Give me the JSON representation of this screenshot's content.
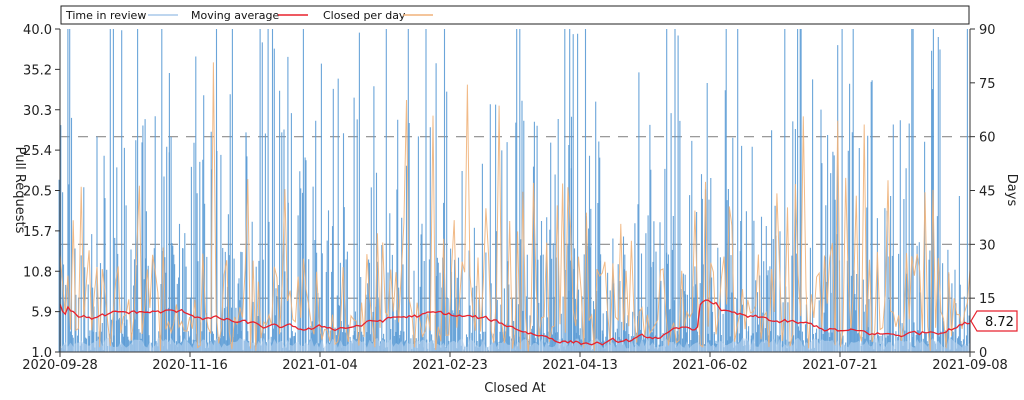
{
  "chart_data": {
    "type": "line",
    "xlabel": "Closed At",
    "ylabel_left": "Pull Requests",
    "ylabel_right": "Days",
    "x_tick_labels": [
      "2020-09-28",
      "2020-11-16",
      "2021-01-04",
      "2021-02-23",
      "2021-04-13",
      "2021-06-02",
      "2021-07-21",
      "2021-09-08"
    ],
    "y_left_ticks": [
      "40.0",
      "35.2",
      "30.3",
      "25.4",
      "20.5",
      "15.7",
      "10.8",
      "5.9",
      "1.0"
    ],
    "y_left_range": [
      1.0,
      40.0
    ],
    "y_right_ticks": [
      "90",
      "75",
      "60",
      "45",
      "30",
      "15",
      "0"
    ],
    "y_right_range": [
      0,
      90
    ],
    "grid": "dashed horizontal at 15, 30, 60 days",
    "legend_position": "top",
    "series": [
      {
        "name": "Time in review",
        "color": "#5b9bd5",
        "axis": "right",
        "style": "spikes"
      },
      {
        "name": "Moving average",
        "color": "#e8222d",
        "axis": "right",
        "style": "line"
      },
      {
        "name": "Closed per day",
        "color": "#f0b27a",
        "axis": "left",
        "style": "line"
      }
    ],
    "current_value_label": "8.72",
    "colors": {
      "time_in_review": "#5b9bd5",
      "moving_average": "#e8222d",
      "closed_per_day": "#f0b27a",
      "grid": "#8c8c8c"
    }
  }
}
